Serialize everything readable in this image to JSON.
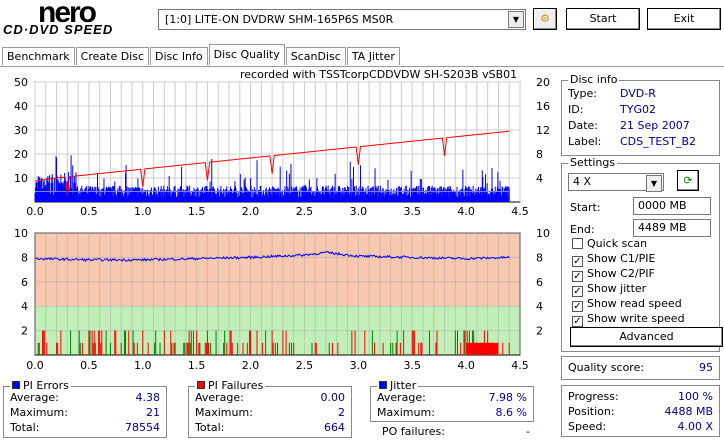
{
  "app": {
    "logo_top": "nero",
    "logo_bottom": "CD·DVD SPEED"
  },
  "toolbar": {
    "drive": "[1:0]  LITE-ON DVDRW SHM-165P6S MS0R",
    "start": "Start",
    "exit": "Exit"
  },
  "tabs": [
    "Benchmark",
    "Create Disc",
    "Disc Info",
    "Disc Quality",
    "ScanDisc",
    "TA Jitter"
  ],
  "active_tab": "Disc Quality",
  "chart_caption": "recorded with TSSTcorpCDDVDW SH-S203B  vSB01",
  "disc_info": {
    "title": "Disc info",
    "rows": [
      {
        "label": "Type:",
        "value": "DVD-R"
      },
      {
        "label": "ID:",
        "value": "TYG02"
      },
      {
        "label": "Date:",
        "value": "21 Sep 2007"
      },
      {
        "label": "Label:",
        "value": "CDS_TEST_B2"
      }
    ]
  },
  "settings": {
    "title": "Settings",
    "speed": "4 X",
    "start_label": "Start:",
    "start": "0000 MB",
    "end_label": "End:",
    "end": "4489 MB",
    "checks": [
      {
        "label": "Quick scan",
        "checked": false
      },
      {
        "label": "Show C1/PIE",
        "checked": true
      },
      {
        "label": "Show C2/PIF",
        "checked": true
      },
      {
        "label": "Show jitter",
        "checked": true
      },
      {
        "label": "Show read speed",
        "checked": true
      },
      {
        "label": "Show write speed",
        "checked": true
      }
    ],
    "advanced": "Advanced"
  },
  "quality": {
    "label": "Quality score:",
    "value": "95"
  },
  "progress": {
    "rows": [
      {
        "label": "Progress:",
        "value": "100 %"
      },
      {
        "label": "Position:",
        "value": "4488 MB"
      },
      {
        "label": "Speed:",
        "value": "4.00 X"
      }
    ]
  },
  "pi_errors": {
    "title": "PI Errors",
    "color": "#0000ff",
    "rows": [
      {
        "label": "Average:",
        "value": "4.38"
      },
      {
        "label": "Maximum:",
        "value": "21"
      },
      {
        "label": "Total:",
        "value": "78554"
      }
    ]
  },
  "pi_failures": {
    "title": "PI Failures",
    "color": "#ff0000",
    "rows": [
      {
        "label": "Average:",
        "value": "0.00"
      },
      {
        "label": "Maximum:",
        "value": "2"
      },
      {
        "label": "Total:",
        "value": "664"
      }
    ]
  },
  "jitter": {
    "title": "Jitter",
    "color": "#0000ff",
    "rows": [
      {
        "label": "Average:",
        "value": "7.98 %"
      },
      {
        "label": "Maximum:",
        "value": "8.6 %"
      }
    ],
    "po_label": "PO failures:",
    "po_value": "-"
  },
  "chart_data": [
    {
      "type": "bar",
      "name": "PI errors / read speed",
      "xlim": [
        0,
        4.5
      ],
      "ylim": [
        0,
        50
      ],
      "y2lim": [
        0,
        20
      ],
      "x_ticks": [
        "0.0",
        "0.5",
        "1.0",
        "1.5",
        "2.0",
        "2.5",
        "3.0",
        "3.5",
        "4.0",
        "4.5"
      ],
      "y_ticks": [
        "10",
        "20",
        "30",
        "40",
        "50"
      ],
      "y2_ticks": [
        "4",
        "8",
        "12",
        "16",
        "20"
      ],
      "pie_avg": 4.38,
      "pie_max": 21,
      "read_speed": {
        "x": [
          0,
          0.2,
          4.4
        ],
        "y": [
          3.5,
          4.0,
          11.8
        ],
        "dips_x": [
          0.3,
          1.0,
          1.6,
          2.2,
          3.0,
          3.8
        ]
      }
    },
    {
      "type": "line",
      "name": "PI failures / jitter",
      "xlim": [
        0,
        4.5
      ],
      "ylim": [
        0,
        10
      ],
      "y2lim": [
        0,
        10
      ],
      "y_ticks": [
        "2",
        "4",
        "6",
        "8",
        "10"
      ],
      "y2_ticks": [
        "2",
        "4",
        "6",
        "8",
        "10"
      ],
      "jitter": {
        "x": [
          0,
          0.5,
          1,
          1.5,
          2,
          2.5,
          2.7,
          3,
          3.5,
          4,
          4.4
        ],
        "y": [
          7.9,
          7.8,
          7.8,
          7.9,
          8.0,
          8.2,
          8.4,
          8.1,
          8.0,
          7.9,
          8.0
        ]
      },
      "pif_max": 2
    }
  ]
}
